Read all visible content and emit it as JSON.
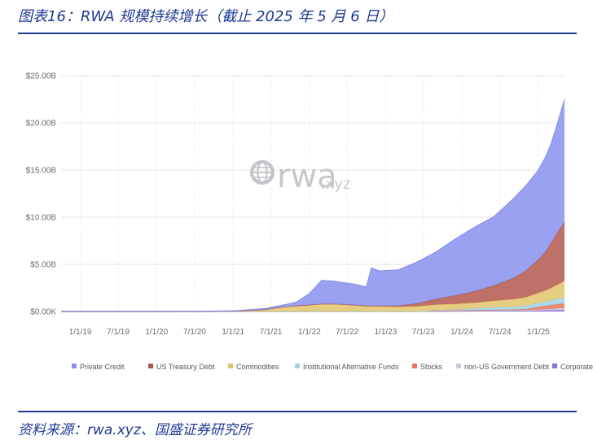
{
  "figure": {
    "title": "图表16：RWA 规模持续增长（截止 2025 年 5 月 6 日）",
    "source": "资料来源：rwa.xyz、国盛证券研究所"
  },
  "watermark": {
    "main": "rwa",
    "suffix": ".xyz",
    "icon": "globe-icon"
  },
  "chart_data": {
    "type": "area",
    "stacked": true,
    "title": "",
    "xlabel": "",
    "ylabel": "",
    "ylim": [
      0,
      25
    ],
    "y_ticks": [
      {
        "v": 0,
        "label": "$0.00K"
      },
      {
        "v": 5,
        "label": "$5.00B"
      },
      {
        "v": 10,
        "label": "$10.00B"
      },
      {
        "v": 15,
        "label": "$15.00B"
      },
      {
        "v": 20,
        "label": "$20.00B"
      },
      {
        "v": 25,
        "label": "$25.00B"
      }
    ],
    "x_ticks": [
      "1/1/19",
      "7/1/19",
      "1/1/20",
      "7/1/20",
      "1/1/21",
      "7/1/21",
      "1/1/22",
      "7/1/22",
      "1/1/23",
      "7/1/23",
      "1/1/24",
      "7/1/24",
      "1/1/25"
    ],
    "xlim": [
      "2018-10-01",
      "2025-05-06"
    ],
    "grid": true,
    "legend_position": "bottom",
    "x": [
      "2018-10-01",
      "2019-06-01",
      "2020-06-01",
      "2021-01-01",
      "2021-06-01",
      "2021-09-01",
      "2021-11-01",
      "2022-01-01",
      "2022-03-01",
      "2022-05-01",
      "2022-08-01",
      "2022-10-01",
      "2022-10-25",
      "2022-12-01",
      "2023-03-01",
      "2023-06-01",
      "2023-09-01",
      "2023-12-01",
      "2024-03-01",
      "2024-06-01",
      "2024-09-01",
      "2024-11-01",
      "2025-01-01",
      "2025-02-01",
      "2025-03-01",
      "2025-04-01",
      "2025-05-06"
    ],
    "series": [
      {
        "name": "Corporate Bonds",
        "color": "#8e6fd6",
        "values": [
          0,
          0,
          0,
          0,
          0,
          0,
          0,
          0,
          0,
          0,
          0,
          0,
          0,
          0,
          0,
          0,
          0.02,
          0.03,
          0.05,
          0.05,
          0.06,
          0.07,
          0.08,
          0.1,
          0.12,
          0.14,
          0.15
        ]
      },
      {
        "name": "non-US Government Debt",
        "color": "#c7c9de",
        "values": [
          0,
          0,
          0,
          0,
          0,
          0,
          0,
          0,
          0,
          0,
          0,
          0,
          0,
          0,
          0,
          0,
          0.05,
          0.05,
          0.05,
          0.08,
          0.08,
          0.1,
          0.1,
          0.12,
          0.15,
          0.18,
          0.2
        ]
      },
      {
        "name": "Stocks",
        "color": "#e8775a",
        "values": [
          0,
          0,
          0,
          0,
          0,
          0,
          0,
          0,
          0,
          0,
          0,
          0,
          0,
          0,
          0,
          0,
          0.01,
          0.02,
          0.03,
          0.05,
          0.06,
          0.08,
          0.3,
          0.35,
          0.4,
          0.45,
          0.5
        ]
      },
      {
        "name": "Institutional Alternative Funds",
        "color": "#9fd3e8",
        "values": [
          0,
          0,
          0,
          0,
          0,
          0,
          0,
          0,
          0,
          0,
          0,
          0,
          0,
          0,
          0,
          0,
          0.05,
          0.1,
          0.2,
          0.25,
          0.3,
          0.35,
          0.4,
          0.45,
          0.5,
          0.55,
          0.6
        ]
      },
      {
        "name": "Commodities",
        "color": "#e0c46c",
        "values": [
          0,
          0,
          0.01,
          0.05,
          0.2,
          0.5,
          0.6,
          0.7,
          0.8,
          0.8,
          0.7,
          0.6,
          0.6,
          0.55,
          0.5,
          0.55,
          0.6,
          0.6,
          0.6,
          0.7,
          0.8,
          0.9,
          1.1,
          1.2,
          1.3,
          1.5,
          1.8
        ]
      },
      {
        "name": "US Treasury Debt",
        "color": "#b4584e",
        "values": [
          0,
          0,
          0,
          0,
          0,
          0,
          0,
          0,
          0,
          0,
          0,
          0,
          0,
          0.05,
          0.1,
          0.3,
          0.6,
          0.9,
          1.2,
          1.6,
          2.2,
          2.8,
          3.5,
          4.0,
          4.7,
          5.5,
          6.2
        ]
      },
      {
        "name": "Private Credit",
        "color": "#8891ee",
        "values": [
          0,
          0,
          0,
          0.02,
          0.1,
          0.2,
          0.4,
          1.2,
          2.5,
          2.4,
          2.2,
          2.0,
          4.0,
          3.7,
          3.8,
          4.4,
          5.0,
          6.0,
          6.8,
          7.3,
          8.4,
          9.0,
          9.5,
          10.0,
          10.5,
          11.5,
          13.0
        ]
      }
    ],
    "legend_order": [
      "Private Credit",
      "US Treasury Debt",
      "Commodities",
      "Institutional Alternative Funds",
      "Stocks",
      "non-US Government Debt",
      "Corporate Bonds"
    ]
  }
}
